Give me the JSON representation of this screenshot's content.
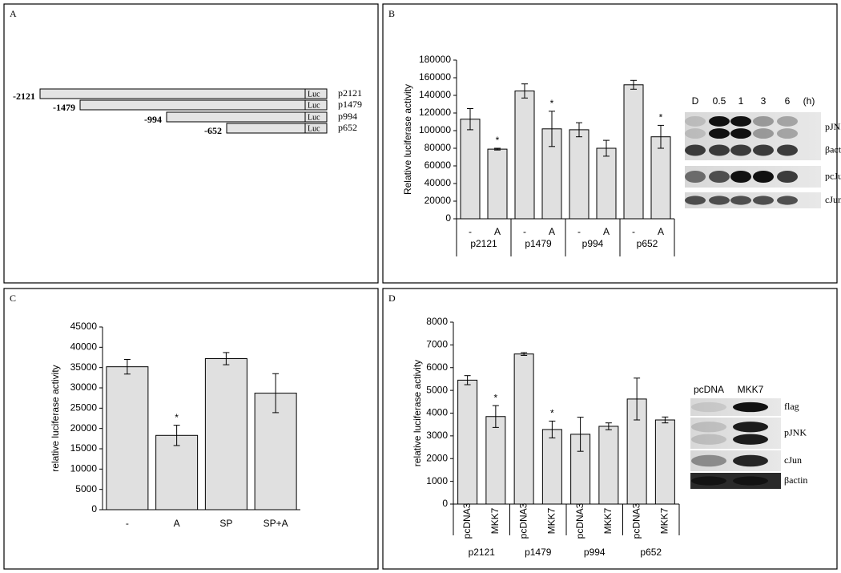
{
  "panel_labels": [
    "A",
    "B",
    "C",
    "D"
  ],
  "diagram": {
    "constructs": [
      {
        "start": "-2121",
        "luc": "Luc",
        "name": "p2121"
      },
      {
        "start": "-1479",
        "luc": "Luc",
        "name": "p1479"
      },
      {
        "start": "-994",
        "luc": "Luc",
        "name": "p994"
      },
      {
        "start": "-652",
        "luc": "Luc",
        "name": "p652"
      }
    ]
  },
  "chart_data": [
    {
      "type": "bar",
      "y_label": "Relative luciferase activity",
      "categories": [
        "-",
        "A",
        "-",
        "A",
        "-",
        "A",
        "-",
        "A"
      ],
      "groups": [
        "p2121",
        "p1479",
        "p994",
        "p652"
      ],
      "values": [
        113000,
        79000,
        145000,
        102000,
        101000,
        80000,
        152000,
        93000
      ],
      "errors": [
        12000,
        1000,
        8000,
        20000,
        8000,
        9000,
        5000,
        13000
      ],
      "annotations": [
        null,
        "*",
        null,
        "*",
        null,
        null,
        null,
        "*"
      ],
      "color": "#e0e0e0",
      "ylim": [
        0,
        180000
      ],
      "yticks": [
        0,
        20000,
        40000,
        60000,
        80000,
        100000,
        120000,
        140000,
        160000,
        180000
      ]
    },
    {
      "type": "bar",
      "y_label": "relative luciferase activity",
      "categories": [
        "-",
        "A",
        "SP",
        "SP+A"
      ],
      "values": [
        35200,
        18300,
        37200,
        28700
      ],
      "errors": [
        1800,
        2500,
        1500,
        4800
      ],
      "annotations": [
        null,
        "*",
        null,
        null
      ],
      "color": "#e0e0e0",
      "ylim": [
        0,
        45000
      ],
      "yticks": [
        0,
        5000,
        10000,
        15000,
        20000,
        25000,
        30000,
        35000,
        40000,
        45000
      ]
    },
    {
      "type": "bar",
      "y_label": "relative luciferase activity",
      "categories": [
        "pcDNA3",
        "MKK7",
        "pcDNA3",
        "MKK7",
        "pcDNA3",
        "MKK7",
        "pcDNA3",
        "MKK7"
      ],
      "groups": [
        "p2121",
        "p1479",
        "p994",
        "p652"
      ],
      "values": [
        5450,
        3850,
        6600,
        3280,
        3070,
        3420,
        4620,
        3700
      ],
      "errors": [
        200,
        480,
        60,
        370,
        750,
        150,
        920,
        130
      ],
      "annotations": [
        null,
        "*",
        null,
        "*",
        null,
        null,
        null,
        null
      ],
      "color": "#e0e0e0",
      "ylim": [
        0,
        8000
      ],
      "yticks": [
        0,
        1000,
        2000,
        3000,
        4000,
        5000,
        6000,
        7000,
        8000
      ]
    }
  ],
  "blots": [
    {
      "header": [
        "D",
        "0.5",
        "1",
        "3",
        "6",
        "(h)"
      ],
      "rows": [
        "pJNK",
        "βactin",
        "pcJun",
        "cJun"
      ]
    },
    {
      "header": [
        "pcDNA",
        "MKK7"
      ],
      "rows": [
        "flag",
        "pJNK",
        "cJun",
        "βactin"
      ]
    }
  ]
}
